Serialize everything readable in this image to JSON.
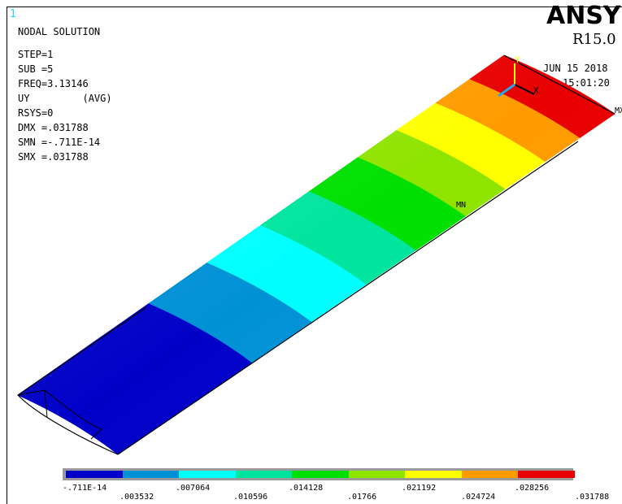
{
  "window_number": "1",
  "info": {
    "title": "NODAL SOLUTION",
    "step": "STEP=1",
    "sub": "SUB =5",
    "freq": "FREQ=3.13146",
    "uy": "UY         (AVG)",
    "rsys": "RSYS=0",
    "dmx": "DMX =.031788",
    "smn": "SMN =-.711E-14",
    "smx": "SMX =.031788"
  },
  "brand": "ANSYS",
  "release": "R15.0",
  "date": "JUN 15 2018",
  "time": "15:01:20",
  "triad": {
    "y": "Y",
    "x": "X"
  },
  "markers": {
    "min": "MN",
    "max": "MX"
  },
  "legend": {
    "colors": [
      "#0000c8",
      "#0091d5",
      "#00ffff",
      "#00e59e",
      "#00e000",
      "#8fe400",
      "#ffff00",
      "#ff9b00",
      "#e80000"
    ],
    "upper_labels": [
      "-.711E-14",
      ".007064",
      ".014128",
      ".021192",
      ".028256"
    ],
    "lower_labels": [
      ".003532",
      ".010596",
      ".01766",
      ".024724",
      ".031788"
    ]
  }
}
